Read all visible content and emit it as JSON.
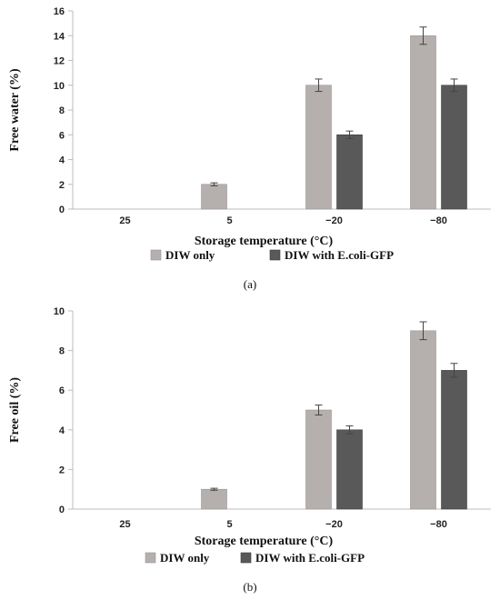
{
  "colors": {
    "diw_only": "#b5b0ae",
    "diw_ecoli": "#595959",
    "axis": "#bdbdbd",
    "error": "#444444"
  },
  "chart_data": [
    {
      "panel_label": "(a)",
      "type": "bar",
      "categories": [
        "25",
        "5",
        "−20",
        "−80"
      ],
      "xlabel": "Storage temperature (°C)",
      "ylabel": "Free water (%)",
      "ylim": [
        0,
        16
      ],
      "yticks": [
        "0",
        "2",
        "4",
        "6",
        "8",
        "10",
        "12",
        "14",
        "16"
      ],
      "legend_position": "bottom",
      "grid": false,
      "series": [
        {
          "name": "DIW only",
          "values": [
            0,
            2,
            10,
            14
          ],
          "errors": [
            0,
            0.12,
            0.5,
            0.7
          ]
        },
        {
          "name": "DIW with E.coli-GFP",
          "values": [
            0,
            0,
            6,
            10
          ],
          "errors": [
            0,
            0,
            0.3,
            0.5
          ]
        }
      ]
    },
    {
      "panel_label": "(b)",
      "type": "bar",
      "categories": [
        "25",
        "5",
        "−20",
        "−80"
      ],
      "xlabel": "Storage temperature (°C)",
      "ylabel": "Free oil  (%)",
      "ylim": [
        0,
        10
      ],
      "yticks": [
        "0",
        "2",
        "4",
        "6",
        "8",
        "10"
      ],
      "legend_position": "bottom",
      "grid": false,
      "series": [
        {
          "name": "DIW only",
          "values": [
            0,
            1,
            5,
            9
          ],
          "errors": [
            0,
            0.05,
            0.25,
            0.45
          ]
        },
        {
          "name": "DIW with E.coli-GFP",
          "values": [
            0,
            0,
            4,
            7
          ],
          "errors": [
            0,
            0,
            0.2,
            0.35
          ]
        }
      ]
    }
  ]
}
